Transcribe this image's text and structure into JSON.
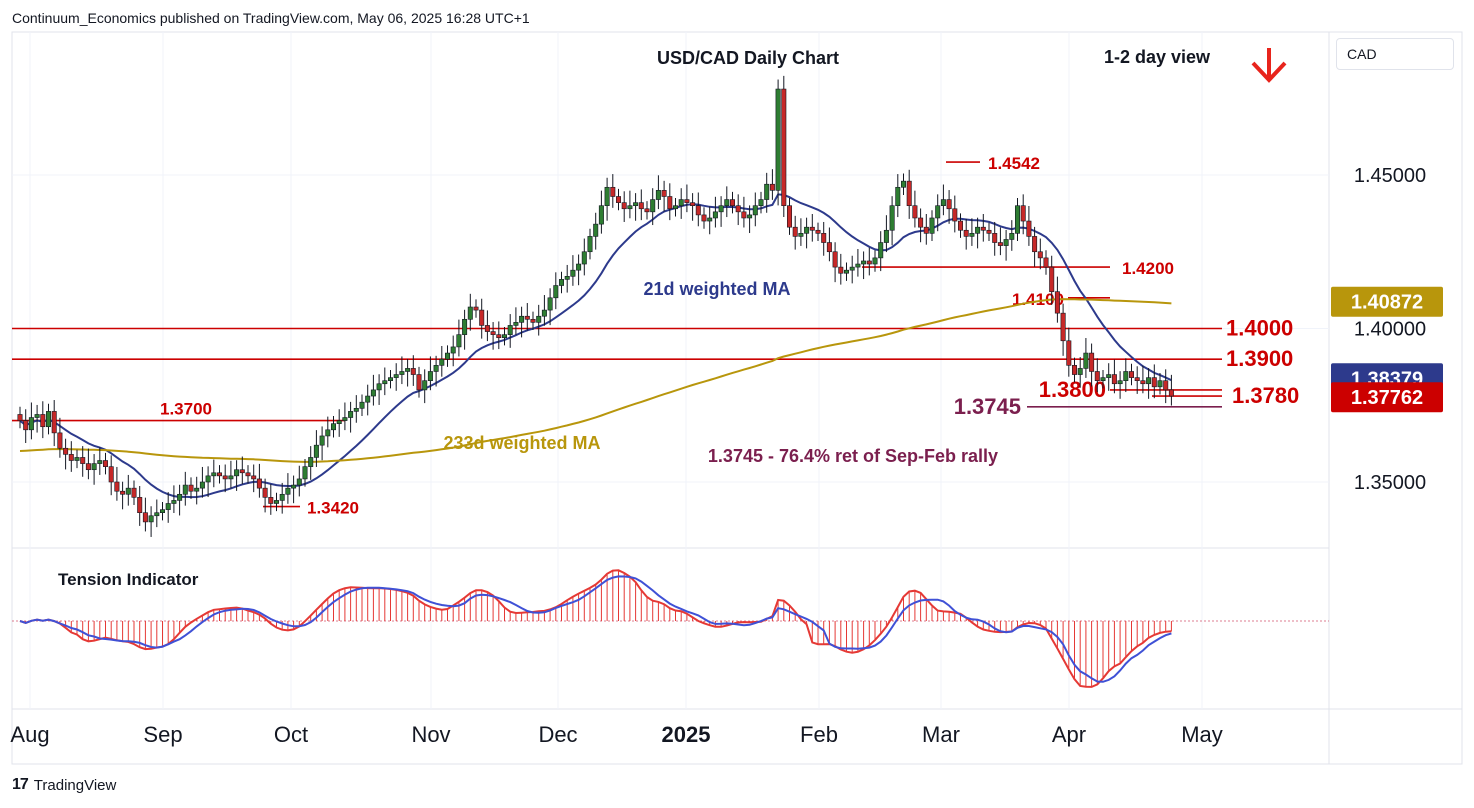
{
  "header": {
    "published": "Continuum_Economics published on TradingView.com, May 06, 2025 16:28 UTC+1"
  },
  "footer": {
    "brand": "TradingView"
  },
  "currency_selector": "CAD",
  "colors": {
    "candle_up": "#2e7d32",
    "candle_down": "#c62828",
    "wma21": "#2d3a8c",
    "wma233": "#b8960c",
    "resistance": "#cc0000",
    "retracement": "#7b1f4e",
    "tension_fast": "#e53935",
    "tension_slow": "#3f51d6",
    "arrow": "#e8241c"
  },
  "chart_data": [
    {
      "type": "candlestick",
      "title": "USD/CAD Daily Chart",
      "view_label": "1-2 day view",
      "view_direction": "down-arrow-icon",
      "x_tick_labels": [
        "Aug",
        "Sep",
        "Oct",
        "Nov",
        "Dec",
        "2025",
        "Feb",
        "Mar",
        "Apr",
        "May"
      ],
      "y_tick_labels": [
        "1.35000",
        "1.40000",
        "1.45000"
      ],
      "ylim": [
        1.325,
        1.495
      ],
      "candles_close": [
        1.37,
        1.367,
        1.371,
        1.372,
        1.368,
        1.373,
        1.366,
        1.361,
        1.359,
        1.357,
        1.358,
        1.356,
        1.354,
        1.356,
        1.357,
        1.355,
        1.35,
        1.347,
        1.346,
        1.348,
        1.345,
        1.34,
        1.337,
        1.339,
        1.34,
        1.341,
        1.343,
        1.344,
        1.346,
        1.349,
        1.347,
        1.348,
        1.35,
        1.352,
        1.353,
        1.352,
        1.351,
        1.352,
        1.354,
        1.353,
        1.352,
        1.351,
        1.348,
        1.345,
        1.343,
        1.344,
        1.346,
        1.348,
        1.349,
        1.351,
        1.355,
        1.358,
        1.362,
        1.365,
        1.367,
        1.369,
        1.37,
        1.371,
        1.373,
        1.374,
        1.376,
        1.378,
        1.38,
        1.382,
        1.383,
        1.384,
        1.385,
        1.386,
        1.387,
        1.385,
        1.38,
        1.383,
        1.386,
        1.388,
        1.39,
        1.392,
        1.394,
        1.398,
        1.403,
        1.407,
        1.406,
        1.401,
        1.399,
        1.398,
        1.397,
        1.398,
        1.401,
        1.402,
        1.404,
        1.403,
        1.402,
        1.404,
        1.406,
        1.41,
        1.414,
        1.416,
        1.417,
        1.419,
        1.421,
        1.425,
        1.43,
        1.434,
        1.44,
        1.446,
        1.443,
        1.441,
        1.439,
        1.44,
        1.441,
        1.439,
        1.438,
        1.442,
        1.445,
        1.443,
        1.439,
        1.44,
        1.442,
        1.441,
        1.44,
        1.437,
        1.435,
        1.436,
        1.438,
        1.44,
        1.442,
        1.44,
        1.438,
        1.436,
        1.437,
        1.44,
        1.442,
        1.447,
        1.445,
        1.478,
        1.44,
        1.433,
        1.43,
        1.431,
        1.433,
        1.432,
        1.431,
        1.428,
        1.425,
        1.42,
        1.418,
        1.419,
        1.42,
        1.421,
        1.422,
        1.421,
        1.423,
        1.428,
        1.432,
        1.44,
        1.446,
        1.448,
        1.44,
        1.436,
        1.433,
        1.431,
        1.436,
        1.44,
        1.442,
        1.439,
        1.435,
        1.432,
        1.43,
        1.431,
        1.433,
        1.432,
        1.431,
        1.428,
        1.427,
        1.429,
        1.431,
        1.44,
        1.435,
        1.43,
        1.425,
        1.423,
        1.42,
        1.412,
        1.405,
        1.396,
        1.388,
        1.385,
        1.387,
        1.392,
        1.386,
        1.383,
        1.384,
        1.385,
        1.382,
        1.383,
        1.386,
        1.384,
        1.383,
        1.382,
        1.384,
        1.381,
        1.383,
        1.38,
        1.378
      ]
    },
    {
      "type": "line",
      "series": [
        {
          "name": "21d weighted MA"
        },
        {
          "name": "233d weighted MA"
        }
      ]
    },
    {
      "type": "horizontal-levels",
      "levels": [
        {
          "label": "1.4000",
          "value": 1.4
        },
        {
          "label": "1.3900",
          "value": 1.39
        },
        {
          "label": "1.3800",
          "value": 1.38
        },
        {
          "label": "1.3780",
          "value": 1.378
        },
        {
          "label": "1.3745",
          "value": 1.3745
        },
        {
          "label": "1.3700",
          "value": 1.37
        },
        {
          "label": "1.4200",
          "value": 1.42
        },
        {
          "label": "1.4100",
          "value": 1.41
        },
        {
          "label": "1.4542",
          "value": 1.4542
        },
        {
          "label": "1.3420",
          "value": 1.342
        }
      ],
      "annotation": "1.3745 - 76.4% ret of Sep-Feb rally"
    },
    {
      "type": "price-badges",
      "badges": [
        {
          "label": "1.40872",
          "value": 1.40872,
          "color": "#b8960c"
        },
        {
          "label": "1.38379",
          "value": 1.38379,
          "color": "#2d3a8c"
        },
        {
          "label": "1.37762",
          "value": 1.37762,
          "color": "#cc0000"
        }
      ]
    },
    {
      "type": "oscillator",
      "title": "Tension Indicator"
    }
  ]
}
